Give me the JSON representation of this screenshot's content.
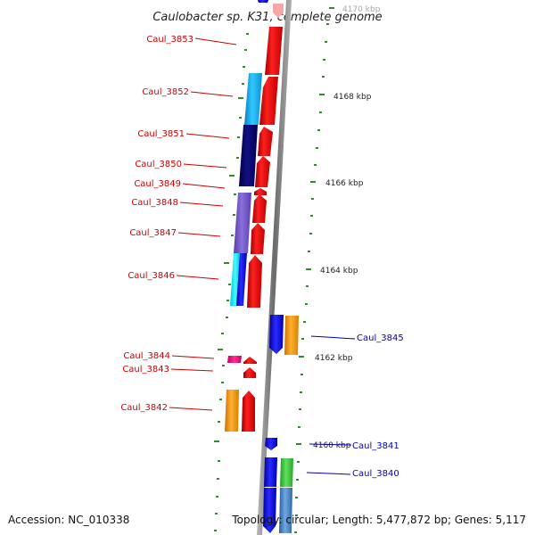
{
  "title": "Caulobacter sp. K31, complete genome",
  "accession": "Accession: NC_010338",
  "topology": "Topology: circular; Length: 5,477,872 bp; Genes: 5,117",
  "kbp_labels": [
    "4170 kbp",
    "4168 kbp",
    "4166 kbp",
    "4164 kbp",
    "4162 kbp",
    "4160 kbp"
  ],
  "left_genes": [
    "Caul_3853",
    "Caul_3852",
    "Caul_3851",
    "Caul_3850",
    "Caul_3849",
    "Caul_3848",
    "Caul_3847",
    "Caul_3846",
    "Caul_3844",
    "Caul_3843",
    "Caul_3842"
  ],
  "right_genes": [
    "Caul_3845",
    "Caul_3841",
    "Caul_3840"
  ],
  "colors": {
    "label_left": "#cc0000",
    "label_right": "#0000bb",
    "ticks": "#2e8b2e",
    "backbone": "#8c8c8c",
    "gene_red": "#ee0000",
    "gene_blue": "#1a1aee",
    "gene_navy": "#0a0a70",
    "gene_cyan": "#1ab0f0",
    "gene_purple": "#7a5cc8",
    "gene_orange": "#f59a10",
    "gene_magenta": "#e8207a",
    "gene_green": "#3cc840",
    "gene_steel": "#4a86c0"
  }
}
